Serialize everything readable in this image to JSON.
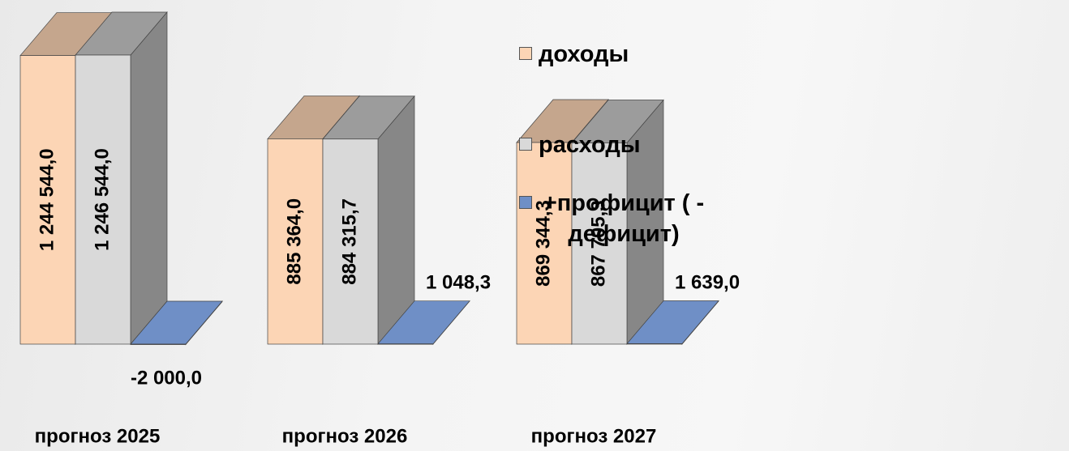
{
  "chart_data": {
    "type": "bar",
    "categories": [
      "прогноз 2025",
      "прогноз 2026",
      "прогноз 2027"
    ],
    "series": [
      {
        "name": "доходы",
        "color": "#fcd5b5",
        "values": [
          1244544.0,
          885364.0,
          869344.3
        ],
        "value_labels": [
          "1 244 544,0",
          "885 364,0",
          "869 344,3"
        ]
      },
      {
        "name": "расходы",
        "color": "#d9d9d9",
        "values": [
          1246544.0,
          884315.7,
          867705.3
        ],
        "value_labels": [
          "1 246 544,0",
          "884 315,7",
          "867 705,3"
        ]
      },
      {
        "name": "+профицит ( -дефицит)",
        "color": "#6f8fc6",
        "values": [
          -2000.0,
          1048.3,
          1639.0
        ],
        "value_labels": [
          "-2 000,0",
          "1 048,3",
          "1 639,0"
        ]
      }
    ]
  }
}
